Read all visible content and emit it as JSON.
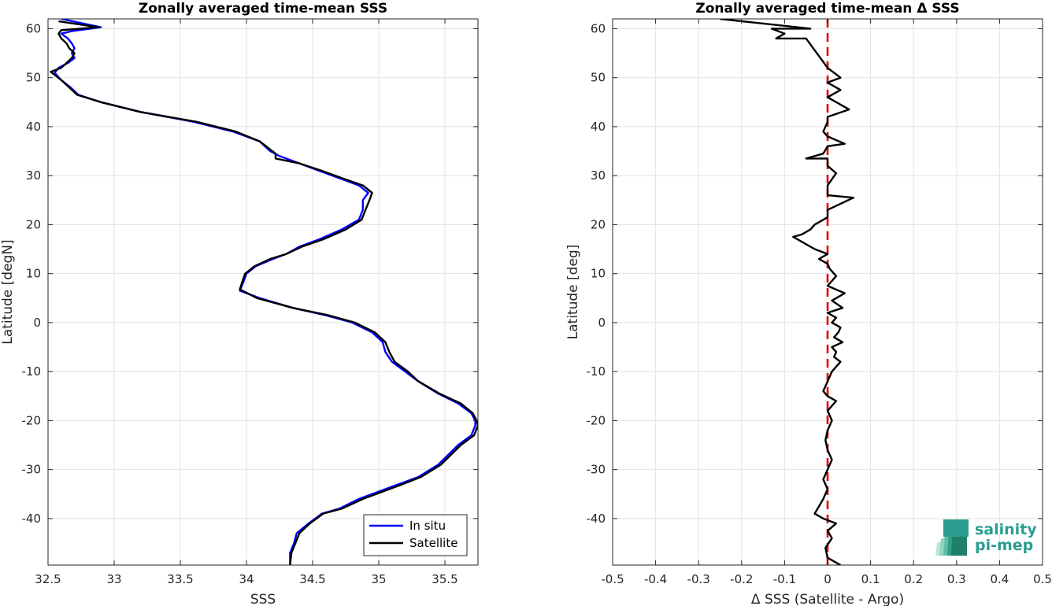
{
  "chart_data": [
    {
      "type": "line",
      "title": "Zonally averaged time-mean SSS",
      "xlabel": "SSS",
      "ylabel": "Latitude [degN]",
      "xlim": [
        32.5,
        35.75
      ],
      "ylim": [
        -49.5,
        62
      ],
      "xticks": [
        32.5,
        33,
        33.5,
        34,
        34.5,
        35,
        35.5
      ],
      "xticklabels": [
        "32.5",
        "33",
        "33.5",
        "34",
        "34.5",
        "35",
        "35.5"
      ],
      "yticks": [
        -40,
        -30,
        -20,
        -10,
        0,
        10,
        20,
        30,
        40,
        50,
        60
      ],
      "yticklabels": [
        "-40",
        "-30",
        "-20",
        "-10",
        "0",
        "10",
        "20",
        "30",
        "40",
        "50",
        "60"
      ],
      "grid": true,
      "legend": {
        "position": "bottom-right",
        "entries": [
          "In situ",
          "Satellite"
        ]
      },
      "series": [
        {
          "name": "In situ",
          "color": "#0000ff",
          "points": [
            [
              34.33,
              -49.5
            ],
            [
              34.33,
              -47
            ],
            [
              34.36,
              -45
            ],
            [
              34.38,
              -43
            ],
            [
              34.47,
              -41
            ],
            [
              34.57,
              -39
            ],
            [
              34.7,
              -38
            ],
            [
              34.85,
              -36
            ],
            [
              35.0,
              -34.5
            ],
            [
              35.15,
              -33
            ],
            [
              35.3,
              -31.5
            ],
            [
              35.45,
              -29
            ],
            [
              35.6,
              -25
            ],
            [
              35.7,
              -23
            ],
            [
              35.73,
              -21
            ],
            [
              35.73,
              -20
            ],
            [
              35.7,
              -18.5
            ],
            [
              35.6,
              -16.5
            ],
            [
              35.45,
              -14.5
            ],
            [
              35.3,
              -12
            ],
            [
              35.2,
              -10
            ],
            [
              35.1,
              -8
            ],
            [
              35.05,
              -6
            ],
            [
              35.03,
              -4
            ],
            [
              34.95,
              -2
            ],
            [
              34.8,
              0
            ],
            [
              34.6,
              1.5
            ],
            [
              34.35,
              3
            ],
            [
              34.1,
              5
            ],
            [
              33.95,
              6.5
            ],
            [
              33.98,
              8.5
            ],
            [
              34.0,
              10
            ],
            [
              34.07,
              11.5
            ],
            [
              34.2,
              13
            ],
            [
              34.3,
              14
            ],
            [
              34.4,
              15.5
            ],
            [
              34.55,
              17
            ],
            [
              34.72,
              19
            ],
            [
              34.85,
              21
            ],
            [
              34.88,
              23
            ],
            [
              34.88,
              25
            ],
            [
              34.92,
              26.5
            ],
            [
              34.85,
              28
            ],
            [
              34.7,
              29.5
            ],
            [
              34.55,
              31
            ],
            [
              34.4,
              32.5
            ],
            [
              34.25,
              34
            ],
            [
              34.18,
              35
            ],
            [
              34.1,
              37
            ],
            [
              33.9,
              39
            ],
            [
              33.6,
              41
            ],
            [
              33.2,
              43
            ],
            [
              32.9,
              45
            ],
            [
              32.73,
              46.5
            ],
            [
              32.67,
              48
            ],
            [
              32.6,
              49.5
            ],
            [
              32.55,
              51
            ],
            [
              32.58,
              52
            ],
            [
              32.65,
              53
            ],
            [
              32.7,
              54
            ],
            [
              32.68,
              55
            ],
            [
              32.7,
              56
            ],
            [
              32.68,
              57
            ],
            [
              32.65,
              58
            ],
            [
              32.6,
              59
            ],
            [
              32.68,
              59.5
            ],
            [
              32.9,
              60.3
            ],
            [
              32.6,
              62
            ]
          ]
        },
        {
          "name": "Satellite",
          "color": "#000000",
          "points": [
            [
              34.33,
              -49.5
            ],
            [
              34.34,
              -47
            ],
            [
              34.37,
              -45
            ],
            [
              34.4,
              -43
            ],
            [
              34.48,
              -41
            ],
            [
              34.58,
              -39
            ],
            [
              34.72,
              -38
            ],
            [
              34.88,
              -36
            ],
            [
              35.03,
              -34.5
            ],
            [
              35.18,
              -33
            ],
            [
              35.32,
              -31.5
            ],
            [
              35.47,
              -29
            ],
            [
              35.62,
              -25
            ],
            [
              35.72,
              -23
            ],
            [
              35.75,
              -21
            ],
            [
              35.74,
              -20
            ],
            [
              35.71,
              -18.5
            ],
            [
              35.62,
              -16.5
            ],
            [
              35.46,
              -14.5
            ],
            [
              35.3,
              -12
            ],
            [
              35.22,
              -10
            ],
            [
              35.12,
              -8
            ],
            [
              35.08,
              -6
            ],
            [
              35.05,
              -4
            ],
            [
              34.97,
              -2
            ],
            [
              34.82,
              0
            ],
            [
              34.62,
              1.5
            ],
            [
              34.35,
              3
            ],
            [
              34.08,
              5
            ],
            [
              33.95,
              6.8
            ],
            [
              33.97,
              8.5
            ],
            [
              33.99,
              10
            ],
            [
              34.06,
              11.5
            ],
            [
              34.18,
              13
            ],
            [
              34.3,
              14
            ],
            [
              34.42,
              15.5
            ],
            [
              34.58,
              17
            ],
            [
              34.75,
              19
            ],
            [
              34.87,
              21
            ],
            [
              34.9,
              23
            ],
            [
              34.93,
              25
            ],
            [
              34.95,
              26.5
            ],
            [
              34.88,
              28
            ],
            [
              34.72,
              29.5
            ],
            [
              34.57,
              31
            ],
            [
              34.4,
              32.5
            ],
            [
              34.22,
              33.5
            ],
            [
              34.22,
              34.5
            ],
            [
              34.1,
              37
            ],
            [
              33.92,
              39
            ],
            [
              33.62,
              41
            ],
            [
              33.2,
              43
            ],
            [
              32.9,
              45
            ],
            [
              32.72,
              46.5
            ],
            [
              32.66,
              48
            ],
            [
              32.6,
              49.5
            ],
            [
              32.52,
              51.2
            ],
            [
              32.6,
              52
            ],
            [
              32.64,
              53
            ],
            [
              32.68,
              54
            ],
            [
              32.7,
              55
            ],
            [
              32.66,
              56
            ],
            [
              32.64,
              57
            ],
            [
              32.6,
              58
            ],
            [
              32.58,
              59
            ],
            [
              32.6,
              59.7
            ],
            [
              32.88,
              60.3
            ],
            [
              32.58,
              61.5
            ]
          ]
        }
      ]
    },
    {
      "type": "line",
      "title": "Zonally averaged time-mean Δ SSS",
      "xlabel": "Δ SSS (Satellite - Argo)",
      "ylabel": "Latitude [deg]",
      "xlim": [
        -0.5,
        0.5
      ],
      "ylim": [
        -49.5,
        62
      ],
      "xticks": [
        -0.5,
        -0.4,
        -0.3,
        -0.2,
        -0.1,
        0,
        0.1,
        0.2,
        0.3,
        0.4,
        0.5
      ],
      "xticklabels": [
        "-0.5",
        "-0.4",
        "-0.3",
        "-0.2",
        "-0.1",
        "0",
        "0.1",
        "0.2",
        "0.3",
        "0.4",
        "0.5"
      ],
      "yticks": [
        -40,
        -30,
        -20,
        -10,
        0,
        10,
        20,
        30,
        40,
        50,
        60
      ],
      "yticklabels": [
        "-40",
        "-30",
        "-20",
        "-10",
        "0",
        "10",
        "20",
        "30",
        "40",
        "50",
        "60"
      ],
      "grid": true,
      "reference_line": {
        "x": 0,
        "color": "#e00000",
        "style": "dashed"
      },
      "series": [
        {
          "color": "#000000",
          "points": [
            [
              0.03,
              -49.5
            ],
            [
              0.0,
              -48
            ],
            [
              -0.005,
              -46
            ],
            [
              0.01,
              -44
            ],
            [
              0.0,
              -42.5
            ],
            [
              0.02,
              -41
            ],
            [
              -0.01,
              -40
            ],
            [
              -0.03,
              -39
            ],
            [
              -0.02,
              -37.5
            ],
            [
              -0.01,
              -36
            ],
            [
              0.0,
              -34
            ],
            [
              -0.01,
              -32
            ],
            [
              0.0,
              -30
            ],
            [
              0.01,
              -28
            ],
            [
              0.0,
              -26
            ],
            [
              -0.005,
              -24
            ],
            [
              0.0,
              -22
            ],
            [
              0.01,
              -20
            ],
            [
              0.0,
              -18
            ],
            [
              0.02,
              -16
            ],
            [
              0.0,
              -15
            ],
            [
              -0.01,
              -14
            ],
            [
              0.0,
              -12
            ],
            [
              0.01,
              -10
            ],
            [
              0.02,
              -9
            ],
            [
              0.03,
              -8
            ],
            [
              0.015,
              -7
            ],
            [
              0.02,
              -6
            ],
            [
              0.01,
              -5
            ],
            [
              0.035,
              -4
            ],
            [
              0.015,
              -3
            ],
            [
              0.025,
              -2
            ],
            [
              0.03,
              -1
            ],
            [
              0.01,
              0
            ],
            [
              0.02,
              1
            ],
            [
              0.0,
              2
            ],
            [
              0.035,
              3
            ],
            [
              0.01,
              4.5
            ],
            [
              0.04,
              6
            ],
            [
              0.0,
              7.5
            ],
            [
              0.02,
              9.5
            ],
            [
              0.005,
              11
            ],
            [
              0.0,
              12
            ],
            [
              -0.02,
              13
            ],
            [
              0.0,
              14
            ],
            [
              -0.03,
              15
            ],
            [
              -0.05,
              16
            ],
            [
              -0.08,
              17.5
            ],
            [
              -0.06,
              18
            ],
            [
              -0.04,
              19
            ],
            [
              -0.03,
              20
            ],
            [
              0.0,
              21.5
            ],
            [
              0.0,
              23
            ],
            [
              0.06,
              25.5
            ],
            [
              0.0,
              26
            ],
            [
              0.0,
              28
            ],
            [
              0.02,
              30.5
            ],
            [
              0.0,
              32
            ],
            [
              0.0,
              33.5
            ],
            [
              -0.05,
              33.5
            ],
            [
              -0.01,
              34.5
            ],
            [
              0.0,
              36
            ],
            [
              0.04,
              36.5
            ],
            [
              0.0,
              38
            ],
            [
              -0.01,
              39
            ],
            [
              0.0,
              41
            ],
            [
              0.0,
              42
            ],
            [
              0.05,
              43.5
            ],
            [
              0.0,
              46
            ],
            [
              0.03,
              47.5
            ],
            [
              0.0,
              49
            ],
            [
              0.03,
              50
            ],
            [
              0.0,
              52
            ],
            [
              -0.05,
              58
            ],
            [
              -0.12,
              58
            ],
            [
              -0.1,
              59
            ],
            [
              -0.13,
              60
            ],
            [
              -0.1,
              60
            ],
            [
              -0.04,
              60
            ],
            [
              -0.25,
              62
            ]
          ]
        }
      ]
    }
  ],
  "logo": {
    "line1": "salinity",
    "line2": "pi-mep",
    "color": "#2a9d8f"
  }
}
